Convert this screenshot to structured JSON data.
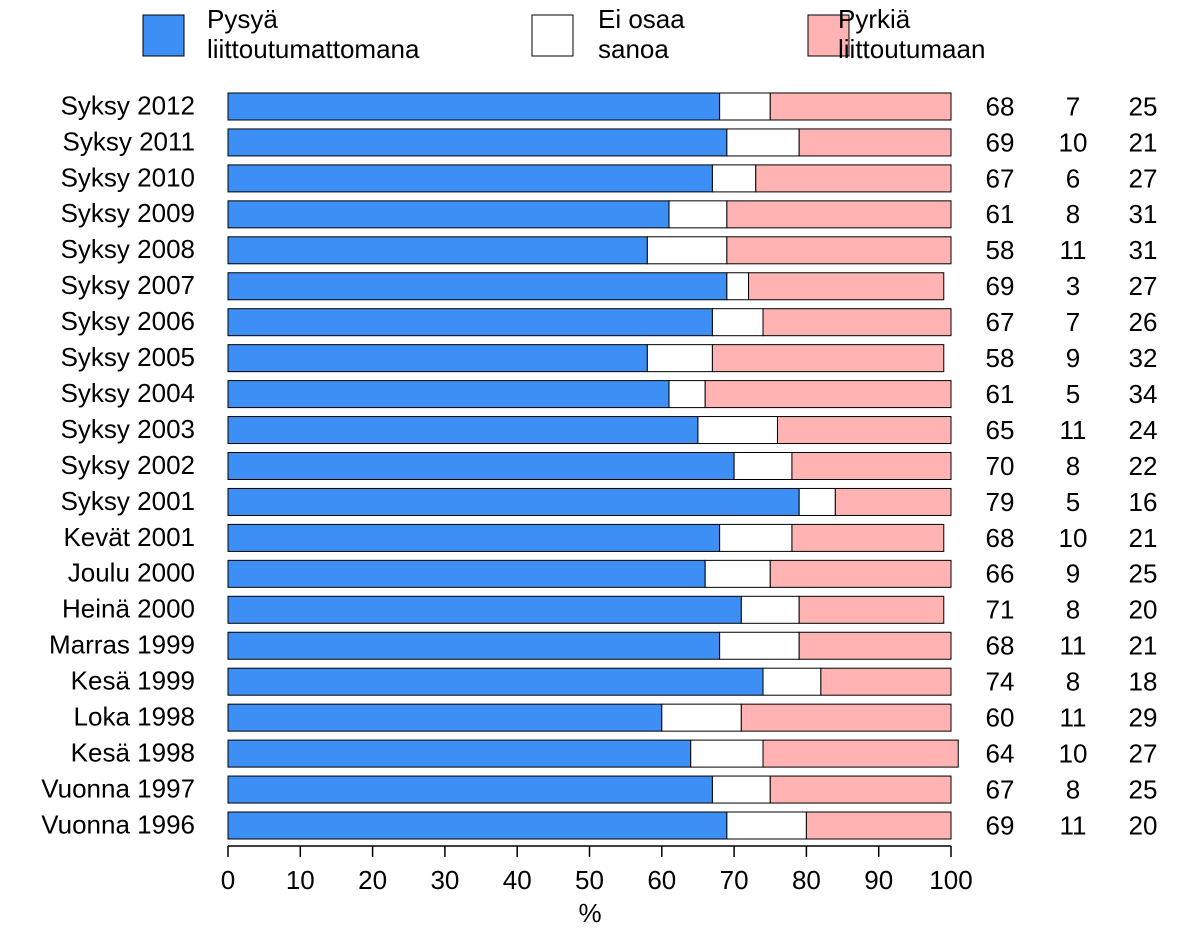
{
  "chart_data": {
    "type": "stacked_bar_horizontal",
    "xlabel": "%",
    "categories": [
      "Syksy 2012",
      "Syksy 2011",
      "Syksy 2010",
      "Syksy 2009",
      "Syksy 2008",
      "Syksy 2007",
      "Syksy 2006",
      "Syksy 2005",
      "Syksy 2004",
      "Syksy 2003",
      "Syksy 2002",
      "Syksy 2001",
      "Kevät 2001",
      "Joulu 2000",
      "Heinä 2000",
      "Marras 1999",
      "Kesä 1999",
      "Loka 1998",
      "Kesä 1998",
      "Vuonna 1997",
      "Vuonna 1996"
    ],
    "series": [
      {
        "name": "Pysyä liittoutumattomana",
        "color": "#3d8ff5",
        "values": [
          68,
          69,
          67,
          61,
          58,
          69,
          67,
          58,
          61,
          65,
          70,
          79,
          68,
          66,
          71,
          68,
          74,
          60,
          64,
          67,
          69
        ]
      },
      {
        "name": "Ei osaa sanoa",
        "color": "#ffffff",
        "values": [
          7,
          10,
          6,
          8,
          11,
          3,
          7,
          9,
          5,
          11,
          8,
          5,
          10,
          9,
          8,
          11,
          8,
          11,
          10,
          8,
          11
        ]
      },
      {
        "name": "Pyrkiä liittoutumaan",
        "color": "#ffb3b3",
        "values": [
          25,
          21,
          27,
          31,
          31,
          27,
          26,
          32,
          34,
          24,
          22,
          16,
          21,
          25,
          20,
          21,
          18,
          29,
          27,
          25,
          20
        ]
      }
    ],
    "xlim": [
      0,
      100
    ],
    "xticks": [
      0,
      10,
      20,
      30,
      40,
      50,
      60,
      70,
      80,
      90,
      100
    ]
  }
}
